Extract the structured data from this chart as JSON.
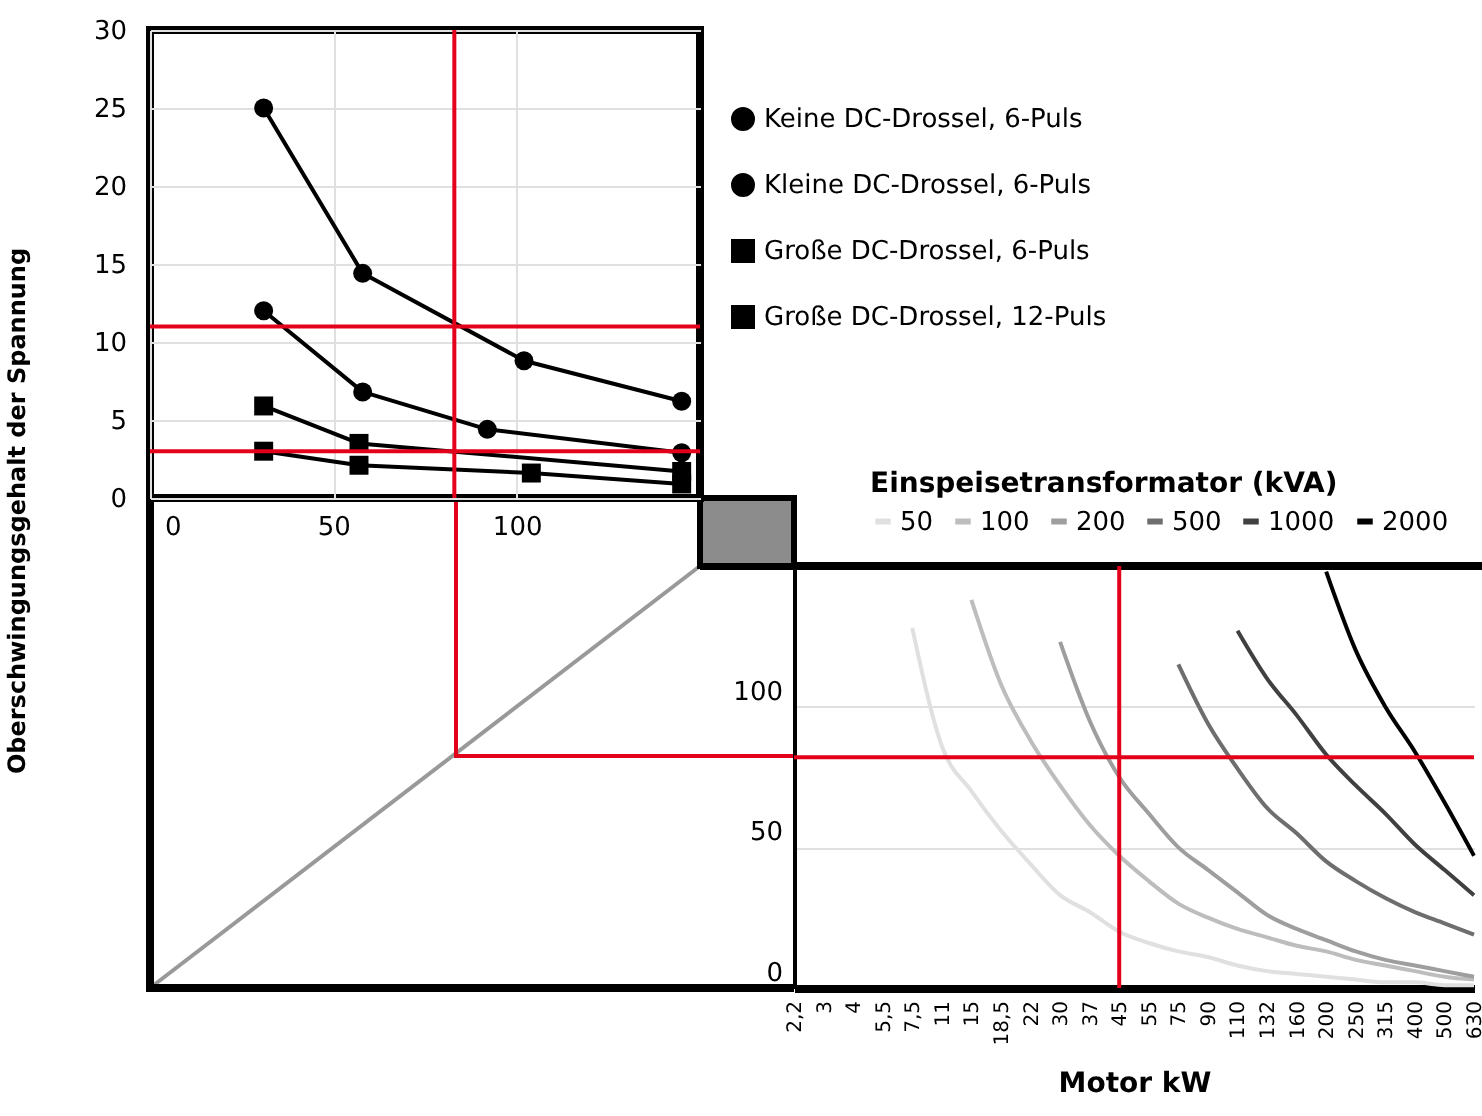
{
  "chart_data": [
    {
      "type": "line",
      "ylabel": "Oberschwingungsgehalt der Spannung",
      "xlim": [
        0,
        150
      ],
      "xticks": [
        0,
        50,
        100
      ],
      "ylim": [
        0,
        30
      ],
      "yticks": [
        0,
        5,
        10,
        15,
        20,
        25,
        30
      ],
      "grid": true,
      "legend": "right",
      "series": [
        {
          "name": "Keine DC-Drossel, 6-Puls",
          "color": "#000000",
          "marker": "circle",
          "x": [
            31,
            58,
            102,
            145
          ],
          "values": [
            25,
            14.4,
            8.8,
            6.2
          ]
        },
        {
          "name": "Kleine DC-Drossel, 6-Puls",
          "color": "#000000",
          "marker": "circle",
          "x": [
            31,
            58,
            92,
            145
          ],
          "values": [
            12,
            6.8,
            4.4,
            2.9
          ]
        },
        {
          "name": "Große DC-Drossel, 6-Puls",
          "color": "#000000",
          "marker": "square",
          "x": [
            31,
            57,
            145
          ],
          "values": [
            5.9,
            3.5,
            1.7
          ]
        },
        {
          "name": "Große DC-Drossel, 12-Puls",
          "color": "#000000",
          "marker": "square",
          "x": [
            31,
            57,
            104,
            145
          ],
          "values": [
            3,
            2.1,
            1.6,
            0.9
          ]
        }
      ],
      "ref_lines": [
        {
          "axis": "y",
          "value": 11,
          "color": "#e3001b"
        },
        {
          "axis": "y",
          "value": 3,
          "color": "#e3001b"
        },
        {
          "axis": "x",
          "value": 83,
          "color": "#e3001b"
        }
      ]
    },
    {
      "type": "line",
      "xlabel": "Motor kW",
      "legend_title": "Einspeisetransformator (kVA)",
      "ylim": [
        0,
        150
      ],
      "yticks": [
        0,
        50,
        100
      ],
      "grid": "y",
      "legend": "top",
      "categories": [
        "2,2",
        "3",
        "4",
        "5,5",
        "7,5",
        "11",
        "15",
        "18,5",
        "22",
        "30",
        "37",
        "45",
        "55",
        "75",
        "90",
        "110",
        "132",
        "160",
        "200",
        "250",
        "315",
        "400",
        "500",
        "630"
      ],
      "series": [
        {
          "name": "50",
          "color": "#e0e0e0",
          "values": [
            null,
            null,
            null,
            null,
            128,
            86,
            70,
            56,
            44,
            33,
            27,
            20,
            16,
            13,
            11,
            8,
            6,
            5,
            4,
            3,
            2,
            2,
            1,
            1
          ]
        },
        {
          "name": "100",
          "color": "#bdbdbd",
          "values": [
            null,
            null,
            null,
            null,
            null,
            null,
            138,
            108,
            88,
            72,
            58,
            47,
            38,
            30,
            25,
            21,
            18,
            15,
            13,
            10,
            8,
            6,
            4,
            3
          ]
        },
        {
          "name": "200",
          "color": "#9e9e9e",
          "values": [
            null,
            null,
            null,
            null,
            null,
            null,
            null,
            null,
            null,
            123,
            95,
            75,
            62,
            50,
            42,
            34,
            26,
            21,
            17,
            13,
            10,
            8,
            6,
            4
          ]
        },
        {
          "name": "500",
          "color": "#6e6e6e",
          "values": [
            null,
            null,
            null,
            null,
            null,
            null,
            null,
            null,
            null,
            null,
            null,
            null,
            null,
            115,
            94,
            78,
            64,
            55,
            45,
            38,
            32,
            27,
            23,
            19
          ]
        },
        {
          "name": "1000",
          "color": "#404040",
          "values": [
            null,
            null,
            null,
            null,
            null,
            null,
            null,
            null,
            null,
            null,
            null,
            null,
            null,
            null,
            null,
            127,
            110,
            97,
            83,
            72,
            62,
            51,
            42,
            33
          ]
        },
        {
          "name": "2000",
          "color": "#000000",
          "values": [
            null,
            null,
            null,
            null,
            null,
            null,
            null,
            null,
            null,
            null,
            null,
            null,
            null,
            null,
            null,
            null,
            null,
            null,
            148,
            120,
            100,
            84,
            66,
            47
          ]
        }
      ],
      "ref_lines": [
        {
          "axis": "x",
          "value": "45",
          "color": "#e3001b"
        },
        {
          "axis": "y",
          "value": 82,
          "color": "#e3001b"
        }
      ]
    }
  ]
}
